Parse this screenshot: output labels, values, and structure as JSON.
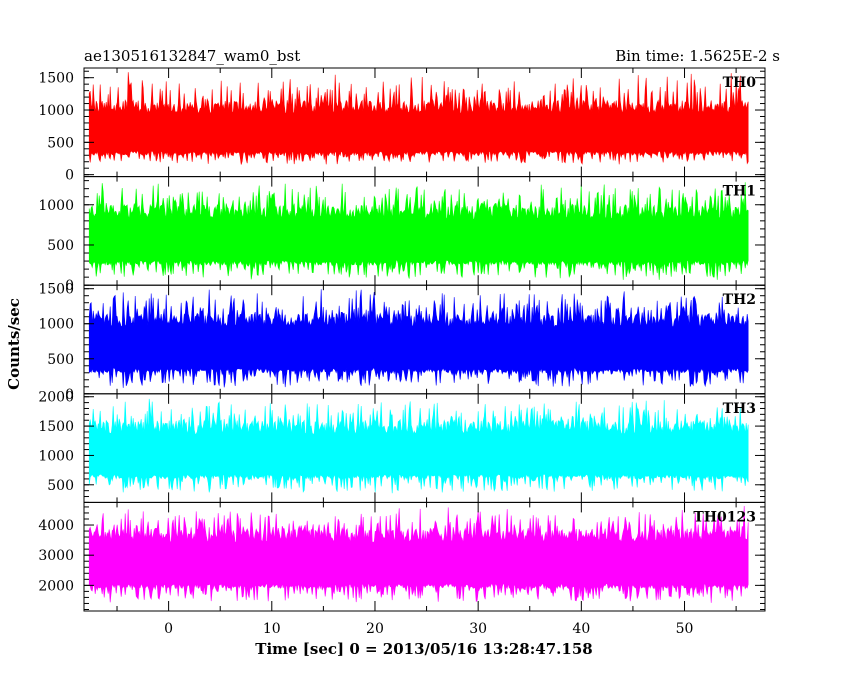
{
  "header": {
    "title": "ae130516132847_wam0_bst",
    "bin_time": "Bin time: 1.5625E-2 s"
  },
  "chart_data": {
    "type": "line",
    "xlabel": "Time [sec] 0 = 2013/05/16 13:28:47.158",
    "ylabel": "Counts/sec",
    "xlim": [
      -8.2,
      57.8
    ],
    "x_ticks": [
      0,
      10,
      20,
      30,
      40,
      50
    ],
    "data_x_range": [
      -7.7,
      56.2
    ],
    "grid": false,
    "panels": [
      {
        "name": "TH0",
        "color": "#ff0000",
        "ylim": [
          -30,
          1650
        ],
        "y_ticks": [
          0,
          500,
          1000,
          1500
        ],
        "base": 150,
        "lo": 300,
        "hi": 1150,
        "peak": 1650,
        "seed": 11
      },
      {
        "name": "TH1",
        "color": "#00ff00",
        "ylim": [
          0,
          1350
        ],
        "y_ticks": [
          0,
          500,
          1000
        ],
        "base": 60,
        "lo": 250,
        "hi": 1000,
        "peak": 1350,
        "seed": 23
      },
      {
        "name": "TH2",
        "color": "#0000ff",
        "ylim": [
          0,
          1550
        ],
        "y_ticks": [
          0,
          500,
          1000,
          1500
        ],
        "base": 80,
        "lo": 300,
        "hi": 1150,
        "peak": 1550,
        "seed": 37
      },
      {
        "name": "TH3",
        "color": "#00ffff",
        "ylim": [
          200,
          2050
        ],
        "y_ticks": [
          500,
          1000,
          1500,
          2000
        ],
        "base": 350,
        "lo": 600,
        "hi": 1600,
        "peak": 2050,
        "seed": 41
      },
      {
        "name": "TH0123",
        "color": "#ff00ff",
        "ylim": [
          1150,
          4750
        ],
        "y_ticks": [
          2000,
          3000,
          4000
        ],
        "base": 1400,
        "lo": 1900,
        "hi": 3900,
        "peak": 4750,
        "seed": 53
      }
    ]
  }
}
